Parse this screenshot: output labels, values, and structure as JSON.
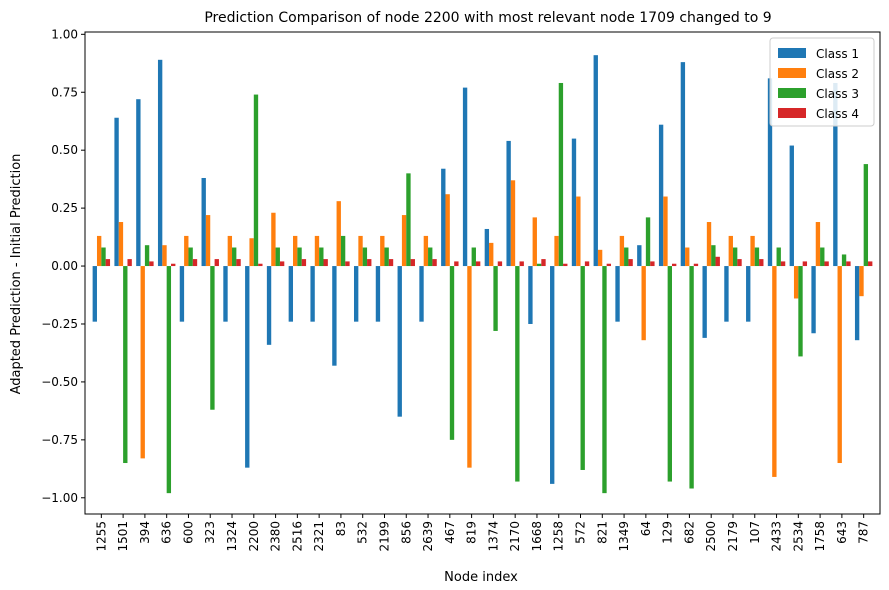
{
  "chart_data": {
    "type": "bar",
    "title": "Prediction Comparison of node 2200 with most relevant node 1709 changed to 9",
    "xlabel": "Node index",
    "ylabel": "Adapted Prediction - Initial Prediction",
    "ylim": [
      -1.07,
      1.01
    ],
    "yticks": [
      -1.0,
      -0.75,
      -0.5,
      -0.25,
      0.0,
      0.25,
      0.5,
      0.75,
      1.0
    ],
    "ytick_labels": [
      "−1.00",
      "−0.75",
      "−0.50",
      "−0.25",
      "0.00",
      "0.25",
      "0.50",
      "0.75",
      "1.00"
    ],
    "grid": false,
    "legend_position": "top-right",
    "categories": [
      "1255",
      "1501",
      "394",
      "636",
      "600",
      "323",
      "1324",
      "2200",
      "2380",
      "2516",
      "2321",
      "83",
      "532",
      "2199",
      "856",
      "2639",
      "467",
      "819",
      "1374",
      "2170",
      "1668",
      "1258",
      "572",
      "821",
      "1349",
      "64",
      "129",
      "682",
      "2500",
      "2179",
      "107",
      "2433",
      "2534",
      "1758",
      "643",
      "787"
    ],
    "series": [
      {
        "name": "Class 1",
        "color": "#1f77b4",
        "values": [
          -0.24,
          0.64,
          0.72,
          0.89,
          -0.24,
          0.38,
          -0.24,
          -0.87,
          -0.34,
          -0.24,
          -0.24,
          -0.43,
          -0.24,
          -0.24,
          -0.65,
          -0.24,
          0.42,
          0.77,
          0.16,
          0.54,
          -0.25,
          -0.94,
          0.55,
          0.91,
          -0.24,
          0.09,
          0.61,
          0.88,
          -0.31,
          -0.24,
          -0.24,
          0.81,
          0.52,
          -0.29,
          0.79,
          -0.32
        ]
      },
      {
        "name": "Class 2",
        "color": "#ff7f0e",
        "values": [
          0.13,
          0.19,
          -0.83,
          0.09,
          0.13,
          0.22,
          0.13,
          0.12,
          0.23,
          0.13,
          0.13,
          0.28,
          0.13,
          0.13,
          0.22,
          0.13,
          0.31,
          -0.87,
          0.1,
          0.37,
          0.21,
          0.13,
          0.3,
          0.07,
          0.13,
          -0.32,
          0.3,
          0.08,
          0.19,
          0.13,
          0.13,
          -0.91,
          -0.14,
          0.19,
          -0.85,
          -0.13
        ]
      },
      {
        "name": "Class 3",
        "color": "#2ca02c",
        "values": [
          0.08,
          -0.85,
          0.09,
          -0.98,
          0.08,
          -0.62,
          0.08,
          0.74,
          0.08,
          0.08,
          0.08,
          0.13,
          0.08,
          0.08,
          0.4,
          0.08,
          -0.75,
          0.08,
          -0.28,
          -0.93,
          0.01,
          0.79,
          -0.88,
          -0.98,
          0.08,
          0.21,
          -0.93,
          -0.96,
          0.09,
          0.08,
          0.08,
          0.08,
          -0.39,
          0.08,
          0.05,
          0.44
        ]
      },
      {
        "name": "Class 4",
        "color": "#d62728",
        "values": [
          0.03,
          0.03,
          0.02,
          0.01,
          0.03,
          0.03,
          0.03,
          0.01,
          0.02,
          0.03,
          0.03,
          0.02,
          0.03,
          0.03,
          0.03,
          0.03,
          0.02,
          0.02,
          0.02,
          0.02,
          0.03,
          0.01,
          0.02,
          0.01,
          0.03,
          0.02,
          0.01,
          0.01,
          0.04,
          0.03,
          0.03,
          0.02,
          0.02,
          0.02,
          0.02,
          0.02
        ]
      }
    ]
  }
}
